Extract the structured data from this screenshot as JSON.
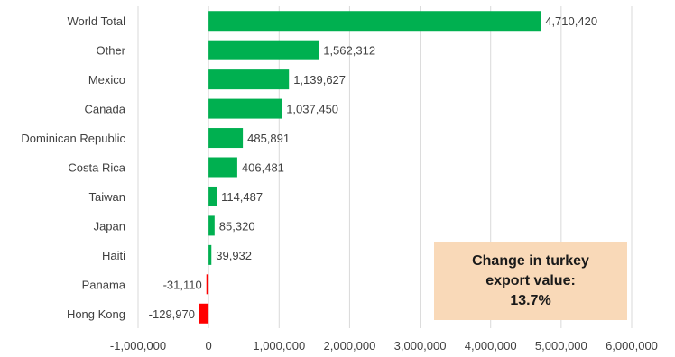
{
  "chart_data": {
    "type": "bar",
    "orientation": "horizontal",
    "categories": [
      "World Total",
      "Other",
      "Mexico",
      "Canada",
      "Dominican Republic",
      "Costa Rica",
      "Taiwan",
      "Japan",
      "Haiti",
      "Panama",
      "Hong Kong"
    ],
    "values": [
      4710420,
      1562312,
      1139627,
      1037450,
      485891,
      406481,
      114487,
      85320,
      39932,
      -31110,
      -129970
    ],
    "value_labels": [
      "4,710,420",
      "1,562,312",
      "1,139,627",
      "1,037,450",
      "485,891",
      "406,481",
      "114,487",
      "85,320",
      "39,932",
      "-31,110",
      "-129,970"
    ],
    "xlim": [
      -1000000,
      6000000
    ],
    "x_ticks": [
      -1000000,
      0,
      1000000,
      2000000,
      3000000,
      4000000,
      5000000,
      6000000
    ],
    "x_tick_labels": [
      "-1,000,000",
      "0",
      "1,000,000",
      "2,000,000",
      "3,000,000",
      "4,000,000",
      "5,000,000",
      "6,000,000"
    ],
    "grid": "vertical",
    "colors": {
      "positive": "#00b050",
      "negative": "#ff0000",
      "grid": "#d9d9d9",
      "callout_bg": "#f9d9b8"
    },
    "title": "",
    "xlabel": "",
    "ylabel": ""
  },
  "callout": {
    "text": "Change in turkey\nexport value:\n13.7%"
  }
}
